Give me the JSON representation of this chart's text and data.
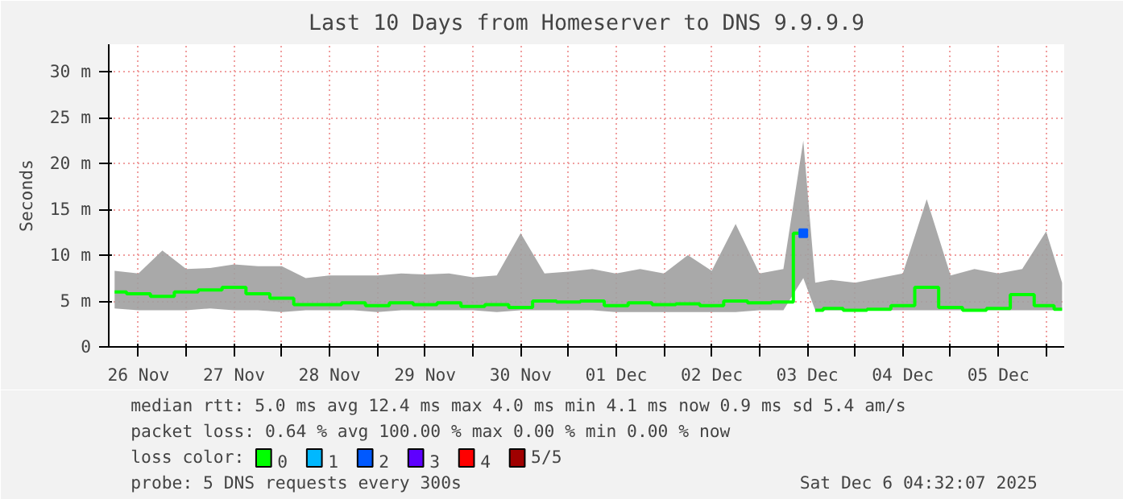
{
  "chart_data": {
    "type": "step",
    "title": "Last 10 Days from Homeserver to DNS 9.9.9.9",
    "ylabel": "Seconds",
    "legend_title": "loss color:",
    "x": [
      "2025-11-26T06:00",
      "2025-11-26T12:00",
      "2025-11-26T18:00",
      "2025-11-27T00:00",
      "2025-11-27T06:00",
      "2025-11-27T12:00",
      "2025-11-27T18:00",
      "2025-11-28T00:00",
      "2025-11-28T06:00",
      "2025-11-28T12:00",
      "2025-11-28T18:00",
      "2025-11-29T00:00",
      "2025-11-29T06:00",
      "2025-11-29T12:00",
      "2025-11-29T18:00",
      "2025-11-30T00:00",
      "2025-11-30T06:00",
      "2025-11-30T12:00",
      "2025-11-30T18:00",
      "2025-12-01T00:00",
      "2025-12-01T06:00",
      "2025-12-01T12:00",
      "2025-12-01T18:00",
      "2025-12-02T00:00",
      "2025-12-02T06:00",
      "2025-12-02T12:00",
      "2025-12-02T18:00",
      "2025-12-03T00:00",
      "2025-12-03T06:00",
      "2025-12-03T11:00",
      "2025-12-03T12:00",
      "2025-12-03T14:00",
      "2025-12-03T18:00",
      "2025-12-04T00:00",
      "2025-12-04T06:00",
      "2025-12-04T12:00",
      "2025-12-04T18:00",
      "2025-12-05T00:00",
      "2025-12-05T06:00",
      "2025-12-05T12:00",
      "2025-12-05T18:00",
      "2025-12-06T00:00",
      "2025-12-06T04:00"
    ],
    "series": [
      {
        "name": "0",
        "color": "#00ff00",
        "values": [
          6.0,
          5.8,
          5.5,
          6.0,
          6.2,
          6.5,
          5.8,
          5.3,
          4.6,
          4.6,
          4.8,
          4.5,
          4.8,
          4.6,
          4.8,
          4.4,
          4.6,
          4.3,
          5.0,
          4.9,
          5.0,
          4.5,
          4.8,
          4.6,
          4.7,
          4.5,
          5.0,
          4.8,
          4.9,
          12.4,
          null,
          4.0,
          4.2,
          4.0,
          4.1,
          4.5,
          6.5,
          4.3,
          4.0,
          4.2,
          5.7,
          4.5,
          4.1
        ],
        "lower": [
          4.2,
          4.0,
          4.0,
          4.0,
          4.2,
          4.0,
          4.0,
          3.8,
          4.0,
          4.0,
          4.0,
          3.8,
          4.0,
          4.0,
          4.0,
          4.0,
          3.8,
          4.0,
          4.0,
          4.0,
          4.0,
          3.8,
          3.8,
          3.8,
          3.8,
          3.8,
          3.8,
          4.0,
          4.0,
          7.5,
          null,
          4.0,
          4.0,
          4.0,
          4.0,
          4.0,
          4.0,
          4.0,
          4.0,
          4.0,
          4.0,
          4.0,
          4.0
        ],
        "upper": [
          8.3,
          8.0,
          10.5,
          8.5,
          8.6,
          9.0,
          8.8,
          8.8,
          7.5,
          7.8,
          7.8,
          7.8,
          8.0,
          7.9,
          8.0,
          7.6,
          7.8,
          12.4,
          8.0,
          8.2,
          8.5,
          8.0,
          8.5,
          8.0,
          10.0,
          8.3,
          13.4,
          8.0,
          8.5,
          22.5,
          null,
          7.0,
          7.3,
          7.0,
          7.5,
          8.0,
          16.1,
          7.8,
          8.5,
          8.0,
          8.5,
          12.6,
          7.0
        ]
      },
      {
        "name": "1",
        "color": "#00b8ff",
        "values": [
          null,
          null,
          null,
          null,
          null,
          null,
          null,
          null,
          null,
          null,
          null,
          null,
          null,
          null,
          null,
          null,
          null,
          null,
          null,
          null,
          null,
          null,
          null,
          null,
          null,
          null,
          null,
          null,
          null,
          null,
          null,
          null,
          null,
          null,
          null,
          null,
          null,
          null,
          null,
          null,
          null,
          null,
          null
        ]
      },
      {
        "name": "2",
        "type": "scatter",
        "marker": "square",
        "color": "#0059ff",
        "x": [
          "2025-12-03T11:00"
        ],
        "values": [
          12.4
        ]
      },
      {
        "name": "3",
        "color": "#5e00ff",
        "values": [
          null,
          null,
          null,
          null,
          null,
          null,
          null,
          null,
          null,
          null,
          null,
          null,
          null,
          null,
          null,
          null,
          null,
          null,
          null,
          null,
          null,
          null,
          null,
          null,
          null,
          null,
          null,
          null,
          null,
          null,
          null,
          null,
          null,
          null,
          null,
          null,
          null,
          null,
          null,
          null,
          null,
          null,
          null
        ]
      },
      {
        "name": "4",
        "color": "#ff0000",
        "values": [
          null,
          null,
          null,
          null,
          null,
          null,
          null,
          null,
          null,
          null,
          null,
          null,
          null,
          null,
          null,
          null,
          null,
          null,
          null,
          null,
          null,
          null,
          null,
          null,
          null,
          null,
          null,
          null,
          null,
          null,
          null,
          null,
          null,
          null,
          null,
          null,
          null,
          null,
          null,
          null,
          null,
          null,
          null
        ]
      },
      {
        "name": "5/5",
        "color": "#a00000",
        "values": [
          null,
          null,
          null,
          null,
          null,
          null,
          null,
          null,
          null,
          null,
          null,
          null,
          null,
          null,
          null,
          null,
          null,
          null,
          null,
          null,
          null,
          null,
          null,
          null,
          null,
          null,
          null,
          null,
          null,
          null,
          null,
          null,
          null,
          null,
          null,
          null,
          null,
          null,
          null,
          null,
          null,
          null,
          null
        ]
      }
    ],
    "xlim": [
      "2025-11-26T04:32",
      "2025-12-06T04:32"
    ],
    "xticks": [
      {
        "value": "2025-11-26T12:00",
        "label": "26 Nov"
      },
      {
        "value": "2025-11-27T00:00",
        "label": null
      },
      {
        "value": "2025-11-27T12:00",
        "label": "27 Nov"
      },
      {
        "value": "2025-11-28T00:00",
        "label": null
      },
      {
        "value": "2025-11-28T12:00",
        "label": "28 Nov"
      },
      {
        "value": "2025-11-29T00:00",
        "label": null
      },
      {
        "value": "2025-11-29T12:00",
        "label": "29 Nov"
      },
      {
        "value": "2025-11-30T00:00",
        "label": null
      },
      {
        "value": "2025-11-30T12:00",
        "label": "30 Nov"
      },
      {
        "value": "2025-12-01T00:00",
        "label": null
      },
      {
        "value": "2025-12-01T12:00",
        "label": "01 Dec"
      },
      {
        "value": "2025-12-02T00:00",
        "label": null
      },
      {
        "value": "2025-12-02T12:00",
        "label": "02 Dec"
      },
      {
        "value": "2025-12-03T00:00",
        "label": null
      },
      {
        "value": "2025-12-03T12:00",
        "label": "03 Dec"
      },
      {
        "value": "2025-12-04T00:00",
        "label": null
      },
      {
        "value": "2025-12-04T12:00",
        "label": "04 Dec"
      },
      {
        "value": "2025-12-05T00:00",
        "label": null
      },
      {
        "value": "2025-12-05T12:00",
        "label": "05 Dec"
      },
      {
        "value": "2025-12-06T00:00",
        "label": null
      }
    ],
    "ylim": [
      0,
      33
    ],
    "yticks": [
      0,
      {
        "value": 5,
        "label": "5 m"
      },
      {
        "value": 10,
        "label": "10 m"
      },
      {
        "value": 15,
        "label": "15 m"
      },
      {
        "value": 20,
        "label": "20 m"
      },
      {
        "value": 25,
        "label": "25 m"
      },
      {
        "value": 30,
        "label": "30 m"
      }
    ],
    "grid": true,
    "legend": "bottom",
    "marker": "none",
    "line_style": "solid",
    "annotations": [
      "median rtt:  5.0 ms avg  12.4 ms max  4.0 ms min  4.1 ms now  0.9 ms sd  5.4   am/s",
      "packet loss: 0.64 % avg  100.00 % max  0.00 % min  0.00 % now",
      "probe:       5 DNS requests every 300s",
      "Sat Dec  6 04:32:07 2025"
    ]
  }
}
